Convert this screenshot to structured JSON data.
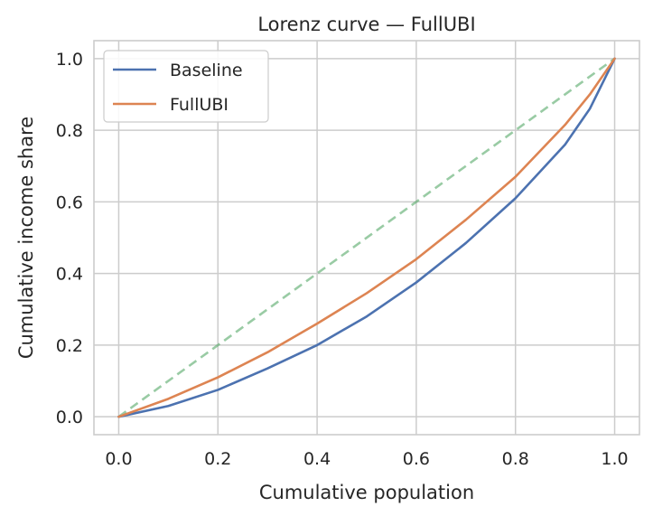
{
  "chart_data": {
    "type": "line",
    "title": "Lorenz curve — FullUBI",
    "xlabel": "Cumulative population",
    "ylabel": "Cumulative income share",
    "xlim": [
      -0.05,
      1.05
    ],
    "ylim": [
      -0.05,
      1.05
    ],
    "xticks": [
      "0.0",
      "0.2",
      "0.4",
      "0.6",
      "0.8",
      "1.0"
    ],
    "yticks": [
      "0.0",
      "0.2",
      "0.4",
      "0.6",
      "0.8",
      "1.0"
    ],
    "grid": true,
    "legend_position": "top-left",
    "series": [
      {
        "name": "Baseline",
        "color": "#4c72b0",
        "style": "solid",
        "x": [
          0.0,
          0.1,
          0.2,
          0.3,
          0.4,
          0.5,
          0.6,
          0.7,
          0.8,
          0.9,
          0.95,
          1.0
        ],
        "y": [
          0.0,
          0.03,
          0.075,
          0.135,
          0.2,
          0.28,
          0.375,
          0.485,
          0.61,
          0.76,
          0.86,
          1.0
        ]
      },
      {
        "name": "FullUBI",
        "color": "#dd8452",
        "style": "solid",
        "x": [
          0.0,
          0.1,
          0.2,
          0.3,
          0.4,
          0.5,
          0.6,
          0.7,
          0.8,
          0.9,
          0.95,
          1.0
        ],
        "y": [
          0.0,
          0.05,
          0.11,
          0.18,
          0.26,
          0.345,
          0.44,
          0.55,
          0.67,
          0.815,
          0.9,
          1.0
        ]
      },
      {
        "color": "#55a868",
        "style": "dashed",
        "x": [
          0.0,
          1.0
        ],
        "y": [
          0.0,
          1.0
        ]
      }
    ]
  }
}
